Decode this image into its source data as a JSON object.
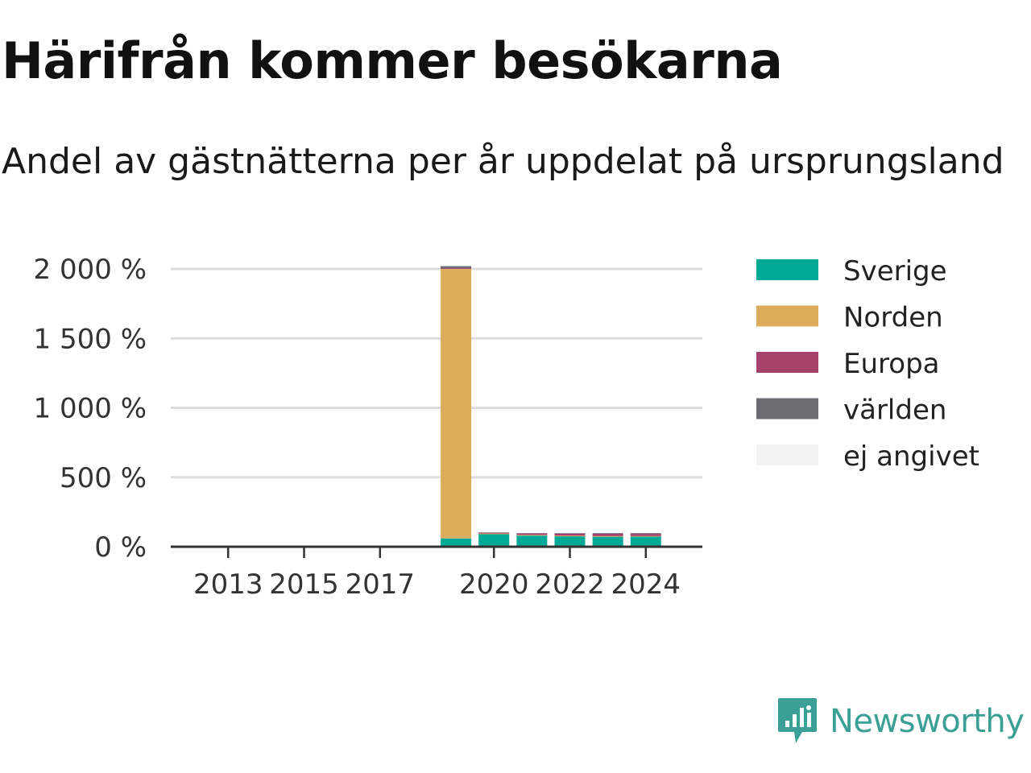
{
  "title": "Härifrån kommer besökarna",
  "subtitle": "Andel av gästnätterna per år uppdelat på ursprungsland",
  "brand": {
    "name": "Newsworthy",
    "icon": "newsworthy-logo-icon"
  },
  "chart_data": {
    "type": "bar",
    "stacked": true,
    "categories": [
      "2019",
      "2020",
      "2021",
      "2022",
      "2023",
      "2024"
    ],
    "series": [
      {
        "name": "Sverige",
        "color": "#00a896",
        "values": [
          60,
          90,
          80,
          75,
          72,
          73
        ]
      },
      {
        "name": "Norden",
        "color": "#dcac5c",
        "values": [
          1940,
          5,
          5,
          5,
          5,
          4
        ]
      },
      {
        "name": "Europa",
        "color": "#a5406a",
        "values": [
          5,
          6,
          10,
          14,
          16,
          15
        ]
      },
      {
        "name": "världen",
        "color": "#6c6b74",
        "values": [
          15,
          2,
          3,
          4,
          5,
          6
        ]
      },
      {
        "name": "ej angivet",
        "color": "#f2f2f2",
        "values": [
          0,
          0,
          0,
          0,
          0,
          0
        ]
      }
    ],
    "x_ticks": [
      "2013",
      "2015",
      "2017",
      "2020",
      "2022",
      "2024"
    ],
    "y_ticks": [
      "0 %",
      "500 %",
      "1 000 %",
      "1 500 %",
      "2 000 %"
    ],
    "y_tick_values": [
      0,
      500,
      1000,
      1500,
      2000
    ],
    "ylim": [
      0,
      2000
    ],
    "xlabel": "",
    "ylabel": "",
    "grid": true,
    "legend_position": "right"
  }
}
